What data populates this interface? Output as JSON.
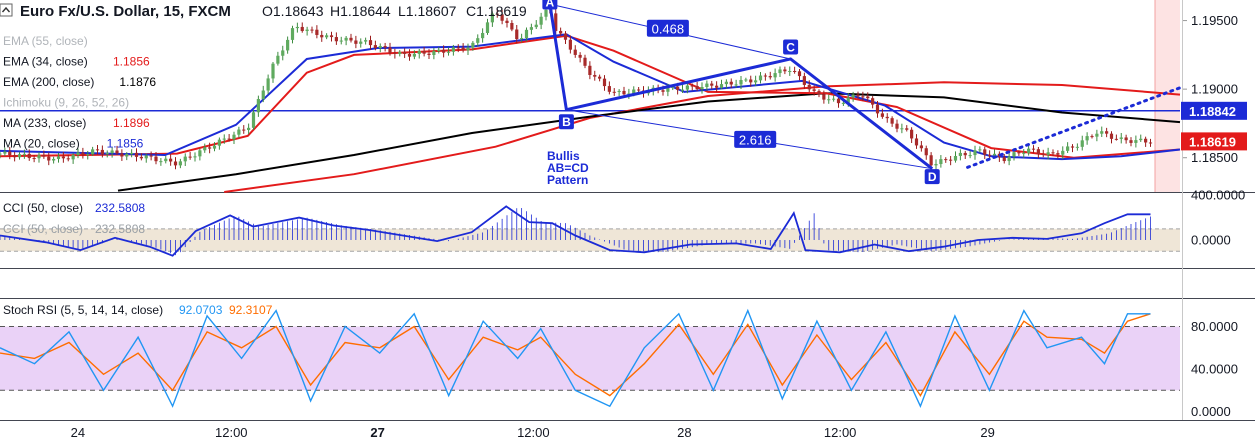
{
  "header": {
    "symbol_title": "Euro Fx/U.S. Dollar, 15, FXCM",
    "ohlc": [
      {
        "key": "O",
        "value": "1.18643"
      },
      {
        "key": "H",
        "value": "1.18644"
      },
      {
        "key": "L",
        "value": "1.18607"
      },
      {
        "key": "C",
        "value": "1.18619"
      }
    ],
    "collapse_icon": "chevron-up-icon"
  },
  "legend": [
    {
      "label": "EMA (55, close)",
      "value": "",
      "color": "#c0c4c8"
    },
    {
      "label": "EMA (34, close)",
      "value": "1.1856",
      "color": "#e31b1b"
    },
    {
      "label": "EMA (200, close)",
      "value": "1.1876",
      "color": "#000000"
    },
    {
      "label": "Ichimoku (9, 26, 52, 26)",
      "value": "",
      "color": "#c0c4c8"
    },
    {
      "label": "MA (233, close)",
      "value": "1.1896",
      "color": "#e31b1b"
    },
    {
      "label": "MA (20, close)",
      "value": "1.1856",
      "color": "#1c2bd6"
    }
  ],
  "price_axis": {
    "ticks": [
      {
        "value": 1.195,
        "label": "1.19500"
      },
      {
        "value": 1.19,
        "label": "1.19000"
      },
      {
        "value": 1.185,
        "label": "1.18500"
      }
    ],
    "range": [
      1.1825,
      1.1965
    ],
    "badges": [
      {
        "value": 1.18842,
        "label": "1.18842",
        "color": "#1c2bd6"
      },
      {
        "value": 1.18619,
        "label": "1.18619",
        "color": "#e31b1b"
      }
    ],
    "horizontal_line": 1.18842
  },
  "pattern": {
    "title_lines": [
      "Bullis",
      "AB=CD",
      "Pattern"
    ],
    "point_labels": [
      {
        "label": "A",
        "t": 0.466,
        "price": 1.1962
      },
      {
        "label": "B",
        "t": 0.48,
        "price": 1.1885
      },
      {
        "label": "C",
        "t": 0.67,
        "price": 1.1922
      },
      {
        "label": "D",
        "t": 0.79,
        "price": 1.1842
      }
    ],
    "ratios": [
      {
        "label": "0.468",
        "t": 0.566,
        "price": 1.1944
      },
      {
        "label": "2.616",
        "t": 0.64,
        "price": 1.1863
      }
    ]
  },
  "time_axis": {
    "ticks": [
      {
        "t": 0.066,
        "label": "24",
        "bold": false
      },
      {
        "t": 0.196,
        "label": "12:00",
        "bold": false
      },
      {
        "t": 0.32,
        "label": "27",
        "bold": true
      },
      {
        "t": 0.452,
        "label": "12:00",
        "bold": false
      },
      {
        "t": 0.58,
        "label": "28",
        "bold": false
      },
      {
        "t": 0.712,
        "label": "12:00",
        "bold": false
      },
      {
        "t": 0.837,
        "label": "29",
        "bold": false
      }
    ]
  },
  "cci_panel": {
    "legend": [
      {
        "label": "CCI (50, close)",
        "value": "232.5808",
        "color": "#1c2bd6"
      },
      {
        "label": "CCI (50, close)",
        "value": "232.5808",
        "color": "#1c2bd6"
      }
    ],
    "ticks": [
      {
        "value": 400,
        "label": "400.0000"
      },
      {
        "value": 0,
        "label": "0.0000"
      }
    ],
    "range": [
      -250,
      420
    ],
    "band": [
      -100,
      100
    ]
  },
  "rsi_panel": {
    "legend": {
      "label": "Stoch RSI (5, 5, 14, 14, close)",
      "k_value": "92.0703",
      "d_value": "92.3107",
      "k_color": "#2196f3",
      "d_color": "#ff6d00"
    },
    "ticks": [
      {
        "value": 80,
        "label": "80.0000"
      },
      {
        "value": 40,
        "label": "40.0000"
      },
      {
        "value": 0,
        "label": "0.0000"
      }
    ],
    "range": [
      -8,
      105
    ],
    "band": [
      20,
      80
    ]
  },
  "chart_data": {
    "type": "line",
    "title": "Euro Fx/U.S. Dollar, 15, FXCM",
    "x_note": "t = fraction of visible time span, 0 (left) to 1 (right)",
    "ylim": [
      1.1825,
      1.1965
    ],
    "series": [
      {
        "name": "MA (233, close)",
        "color": "#e31b1b",
        "points": [
          [
            0.19,
            1.1825
          ],
          [
            0.3,
            1.1838
          ],
          [
            0.42,
            1.1858
          ],
          [
            0.5,
            1.1879
          ],
          [
            0.6,
            1.1895
          ],
          [
            0.7,
            1.1902
          ],
          [
            0.8,
            1.1905
          ],
          [
            0.9,
            1.1903
          ],
          [
            1.0,
            1.1896
          ]
        ]
      },
      {
        "name": "EMA (200, close)",
        "color": "#000000",
        "points": [
          [
            0.1,
            1.1826
          ],
          [
            0.2,
            1.1838
          ],
          [
            0.3,
            1.1852
          ],
          [
            0.4,
            1.1868
          ],
          [
            0.5,
            1.188
          ],
          [
            0.6,
            1.1891
          ],
          [
            0.7,
            1.1897
          ],
          [
            0.8,
            1.1894
          ],
          [
            0.9,
            1.1883
          ],
          [
            1.0,
            1.1876
          ]
        ]
      },
      {
        "name": "EMA (34, close)",
        "color": "#e31b1b",
        "points": [
          [
            0.0,
            1.1851
          ],
          [
            0.15,
            1.1853
          ],
          [
            0.21,
            1.1866
          ],
          [
            0.26,
            1.1912
          ],
          [
            0.3,
            1.1925
          ],
          [
            0.4,
            1.1929
          ],
          [
            0.48,
            1.1939
          ],
          [
            0.52,
            1.1928
          ],
          [
            0.6,
            1.1898
          ],
          [
            0.7,
            1.1897
          ],
          [
            0.76,
            1.1887
          ],
          [
            0.84,
            1.1857
          ],
          [
            0.91,
            1.185
          ],
          [
            1.0,
            1.1856
          ]
        ]
      },
      {
        "name": "MA (20, close)",
        "color": "#1c2bd6",
        "points": [
          [
            0.0,
            1.1855
          ],
          [
            0.14,
            1.1852
          ],
          [
            0.2,
            1.1874
          ],
          [
            0.26,
            1.1922
          ],
          [
            0.32,
            1.193
          ],
          [
            0.4,
            1.1931
          ],
          [
            0.48,
            1.194
          ],
          [
            0.52,
            1.192
          ],
          [
            0.58,
            1.1898
          ],
          [
            0.68,
            1.1906
          ],
          [
            0.75,
            1.1888
          ],
          [
            0.8,
            1.1861
          ],
          [
            0.84,
            1.1851
          ],
          [
            0.9,
            1.1849
          ],
          [
            0.95,
            1.1851
          ],
          [
            1.0,
            1.1856
          ]
        ]
      },
      {
        "name": "Close",
        "color": "#222222",
        "points": [
          [
            0.0,
            1.1853
          ],
          [
            0.05,
            1.1849
          ],
          [
            0.08,
            1.1855
          ],
          [
            0.12,
            1.1851
          ],
          [
            0.15,
            1.1846
          ],
          [
            0.18,
            1.1859
          ],
          [
            0.21,
            1.1872
          ],
          [
            0.23,
            1.1915
          ],
          [
            0.25,
            1.1946
          ],
          [
            0.28,
            1.1937
          ],
          [
            0.31,
            1.1934
          ],
          [
            0.34,
            1.1925
          ],
          [
            0.37,
            1.1927
          ],
          [
            0.4,
            1.1931
          ],
          [
            0.42,
            1.1957
          ],
          [
            0.44,
            1.1936
          ],
          [
            0.466,
            1.1959
          ],
          [
            0.47,
            1.1945
          ],
          [
            0.5,
            1.1912
          ],
          [
            0.52,
            1.1897
          ],
          [
            0.55,
            1.1899
          ],
          [
            0.58,
            1.1901
          ],
          [
            0.61,
            1.1903
          ],
          [
            0.64,
            1.1907
          ],
          [
            0.67,
            1.1915
          ],
          [
            0.69,
            1.1897
          ],
          [
            0.71,
            1.189
          ],
          [
            0.73,
            1.1897
          ],
          [
            0.75,
            1.1878
          ],
          [
            0.77,
            1.1868
          ],
          [
            0.79,
            1.1845
          ],
          [
            0.81,
            1.1851
          ],
          [
            0.83,
            1.1855
          ],
          [
            0.85,
            1.1849
          ],
          [
            0.87,
            1.1856
          ],
          [
            0.89,
            1.1852
          ],
          [
            0.91,
            1.1858
          ],
          [
            0.93,
            1.1869
          ],
          [
            0.95,
            1.1863
          ],
          [
            0.97,
            1.1862
          ]
        ]
      }
    ],
    "cci": {
      "name": "CCI (50, close)",
      "last": 232.5808,
      "points": [
        [
          0.0,
          40
        ],
        [
          0.04,
          -20
        ],
        [
          0.07,
          -90
        ],
        [
          0.1,
          20
        ],
        [
          0.13,
          -60
        ],
        [
          0.15,
          -140
        ],
        [
          0.17,
          80
        ],
        [
          0.2,
          220
        ],
        [
          0.22,
          120
        ],
        [
          0.24,
          160
        ],
        [
          0.26,
          200
        ],
        [
          0.29,
          130
        ],
        [
          0.32,
          90
        ],
        [
          0.35,
          40
        ],
        [
          0.38,
          -10
        ],
        [
          0.41,
          70
        ],
        [
          0.44,
          300
        ],
        [
          0.46,
          160
        ],
        [
          0.48,
          150
        ],
        [
          0.5,
          40
        ],
        [
          0.53,
          -90
        ],
        [
          0.56,
          -110
        ],
        [
          0.6,
          -40
        ],
        [
          0.64,
          -30
        ],
        [
          0.67,
          -80
        ],
        [
          0.69,
          240
        ],
        [
          0.7,
          -90
        ],
        [
          0.73,
          -110
        ],
        [
          0.76,
          -40
        ],
        [
          0.79,
          -100
        ],
        [
          0.82,
          -60
        ],
        [
          0.85,
          0
        ],
        [
          0.88,
          20
        ],
        [
          0.91,
          10
        ],
        [
          0.94,
          60
        ],
        [
          0.96,
          150
        ],
        [
          0.98,
          230
        ],
        [
          1.0,
          230
        ]
      ]
    },
    "stoch_rsi": {
      "k_name": "Stoch RSI %K",
      "d_name": "Stoch RSI %D",
      "k_last": 92.0703,
      "d_last": 92.3107,
      "k_points": [
        [
          0.0,
          60
        ],
        [
          0.03,
          45
        ],
        [
          0.06,
          75
        ],
        [
          0.09,
          20
        ],
        [
          0.12,
          70
        ],
        [
          0.15,
          5
        ],
        [
          0.18,
          90
        ],
        [
          0.21,
          50
        ],
        [
          0.24,
          95
        ],
        [
          0.27,
          10
        ],
        [
          0.3,
          80
        ],
        [
          0.33,
          55
        ],
        [
          0.36,
          92
        ],
        [
          0.39,
          15
        ],
        [
          0.42,
          85
        ],
        [
          0.45,
          50
        ],
        [
          0.47,
          78
        ],
        [
          0.5,
          20
        ],
        [
          0.53,
          5
        ],
        [
          0.56,
          60
        ],
        [
          0.59,
          92
        ],
        [
          0.62,
          20
        ],
        [
          0.65,
          95
        ],
        [
          0.68,
          12
        ],
        [
          0.71,
          85
        ],
        [
          0.74,
          20
        ],
        [
          0.77,
          75
        ],
        [
          0.8,
          5
        ],
        [
          0.83,
          90
        ],
        [
          0.86,
          20
        ],
        [
          0.89,
          95
        ],
        [
          0.91,
          60
        ],
        [
          0.94,
          70
        ],
        [
          0.96,
          45
        ],
        [
          0.98,
          92
        ],
        [
          1.0,
          92
        ]
      ],
      "d_points": [
        [
          0.0,
          55
        ],
        [
          0.03,
          50
        ],
        [
          0.06,
          65
        ],
        [
          0.09,
          35
        ],
        [
          0.12,
          55
        ],
        [
          0.15,
          20
        ],
        [
          0.18,
          75
        ],
        [
          0.21,
          60
        ],
        [
          0.24,
          80
        ],
        [
          0.27,
          25
        ],
        [
          0.3,
          65
        ],
        [
          0.33,
          60
        ],
        [
          0.36,
          80
        ],
        [
          0.39,
          30
        ],
        [
          0.42,
          70
        ],
        [
          0.45,
          58
        ],
        [
          0.47,
          70
        ],
        [
          0.5,
          35
        ],
        [
          0.53,
          15
        ],
        [
          0.56,
          45
        ],
        [
          0.59,
          82
        ],
        [
          0.62,
          35
        ],
        [
          0.65,
          82
        ],
        [
          0.68,
          25
        ],
        [
          0.71,
          72
        ],
        [
          0.74,
          30
        ],
        [
          0.77,
          65
        ],
        [
          0.8,
          15
        ],
        [
          0.83,
          75
        ],
        [
          0.86,
          35
        ],
        [
          0.89,
          85
        ],
        [
          0.91,
          70
        ],
        [
          0.94,
          68
        ],
        [
          0.96,
          55
        ],
        [
          0.98,
          85
        ],
        [
          1.0,
          92
        ]
      ]
    }
  }
}
